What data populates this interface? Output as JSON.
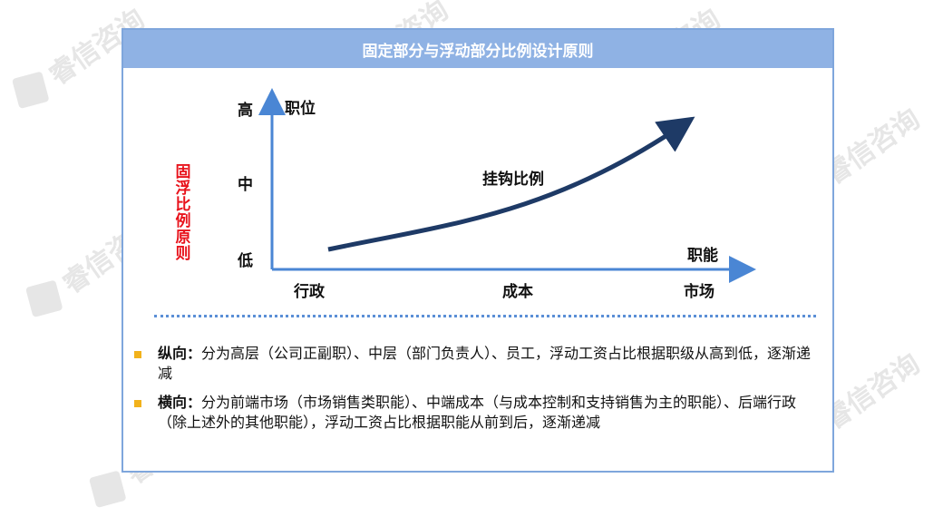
{
  "watermark": "睿信咨询",
  "card": {
    "title": "固定部分与浮动部分比例设计原则"
  },
  "diagram": {
    "side_label": "固浮比例原则",
    "y_axis_name": "职位",
    "x_axis_name": "职能",
    "y_ticks": [
      "高",
      "中",
      "低"
    ],
    "x_ticks": [
      "行政",
      "成本",
      "市场"
    ],
    "curve_label": "挂钩比例",
    "colors": {
      "axis": "#4a86d4",
      "curve": "#1e3a66",
      "side_label": "#e8121b"
    }
  },
  "bullets": [
    {
      "title": "纵向：",
      "text": "分为高层（公司正副职）、中层（部门负责人）、员工，浮动工资占比根据职级从高到低，逐渐递减"
    },
    {
      "title": "横向：",
      "text": "分为前端市场（市场销售类职能）、中端成本（与成本控制和支持销售为主的职能）、后端行政（除上述外的其他职能），浮动工资占比根据职能从前到后，逐渐递减"
    }
  ]
}
